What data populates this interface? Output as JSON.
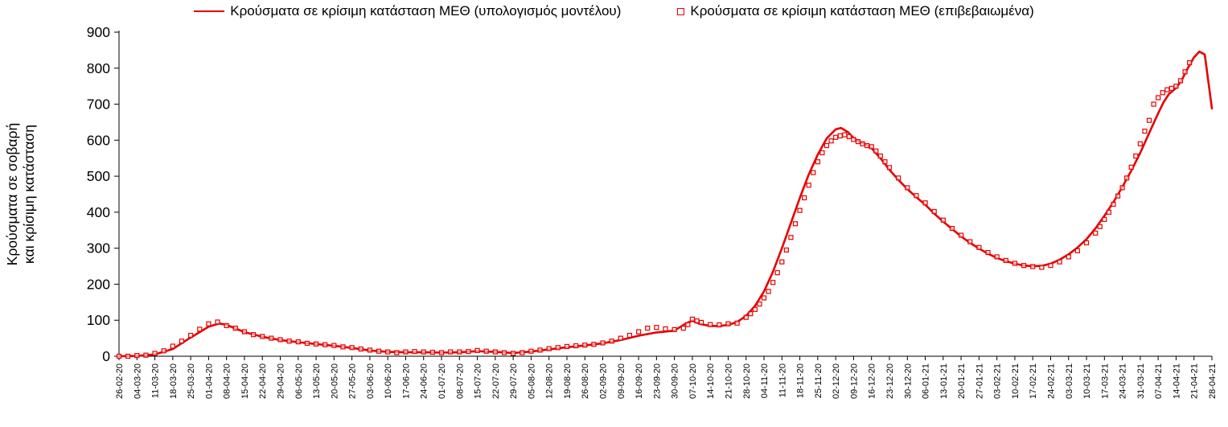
{
  "chart_data": {
    "type": "line",
    "title": "",
    "xlabel": "",
    "ylabel": "Κρούσματα σε σοβαρή και κρίσιμη κατάσταση",
    "ylabel_lines": [
      "Κρούσματα σε σοβαρή",
      "και κρίσιμη κατάσταση"
    ],
    "ylim": [
      0,
      900
    ],
    "yticks": [
      0,
      100,
      200,
      300,
      400,
      500,
      600,
      700,
      800,
      900
    ],
    "grid": false,
    "legend_position": "top-center",
    "colors": {
      "series_red": "#e60000",
      "axis": "#000000",
      "background": "#ffffff"
    },
    "x_tick_labels": [
      "26-02-20",
      "04-03-20",
      "11-03-20",
      "18-03-20",
      "25-03-20",
      "01-04-20",
      "08-04-20",
      "15-04-20",
      "22-04-20",
      "29-04-20",
      "06-05-20",
      "13-05-20",
      "20-05-20",
      "27-05-20",
      "03-06-20",
      "10-06-20",
      "17-06-20",
      "24-06-20",
      "01-07-20",
      "08-07-20",
      "15-07-20",
      "22-07-20",
      "29-07-20",
      "05-08-20",
      "12-08-20",
      "19-08-20",
      "26-08-20",
      "02-09-20",
      "09-09-20",
      "16-09-20",
      "23-09-20",
      "30-09-20",
      "07-10-20",
      "14-10-20",
      "21-10-20",
      "28-10-20",
      "04-11-20",
      "11-11-20",
      "18-11-20",
      "25-11-20",
      "02-12-20",
      "09-12-20",
      "16-12-20",
      "23-12-20",
      "30-12-20",
      "06-01-21",
      "13-01-21",
      "20-01-21",
      "27-01-21",
      "03-02-21",
      "10-02-21",
      "17-02-21",
      "24-02-21",
      "03-03-21",
      "10-03-21",
      "17-03-21",
      "24-03-21",
      "31-03-21",
      "07-04-21",
      "14-04-21",
      "21-04-21",
      "28-04-21"
    ],
    "series": [
      {
        "name": "Κρούσματα σε κρίσιμη κατάσταση ΜΕΘ (υπολογισμός μοντέλου)",
        "style": "line",
        "color": "#e60000",
        "points": [
          [
            0,
            0
          ],
          [
            1,
            1
          ],
          [
            2,
            5
          ],
          [
            3,
            20
          ],
          [
            4,
            52
          ],
          [
            5,
            82
          ],
          [
            5.6,
            91
          ],
          [
            6,
            87
          ],
          [
            6.5,
            77
          ],
          [
            7,
            67
          ],
          [
            8,
            54
          ],
          [
            9,
            45
          ],
          [
            10,
            39
          ],
          [
            11,
            34
          ],
          [
            12,
            29
          ],
          [
            13,
            23
          ],
          [
            14,
            16
          ],
          [
            15,
            12
          ],
          [
            16,
            11
          ],
          [
            17,
            11
          ],
          [
            18,
            10
          ],
          [
            19,
            11
          ],
          [
            20,
            14
          ],
          [
            21,
            12
          ],
          [
            22,
            9
          ],
          [
            23,
            13
          ],
          [
            24,
            19
          ],
          [
            25,
            25
          ],
          [
            26,
            30
          ],
          [
            27,
            36
          ],
          [
            28,
            45
          ],
          [
            29,
            57
          ],
          [
            30,
            66
          ],
          [
            31,
            71
          ],
          [
            31.6,
            90
          ],
          [
            32,
            99
          ],
          [
            32.4,
            90
          ],
          [
            33,
            84
          ],
          [
            33.5,
            84
          ],
          [
            34,
            87
          ],
          [
            34.5,
            95
          ],
          [
            35,
            112
          ],
          [
            35.5,
            140
          ],
          [
            36,
            180
          ],
          [
            36.5,
            235
          ],
          [
            37,
            300
          ],
          [
            37.5,
            370
          ],
          [
            38,
            440
          ],
          [
            38.5,
            505
          ],
          [
            39,
            560
          ],
          [
            39.5,
            605
          ],
          [
            40,
            630
          ],
          [
            40.3,
            634
          ],
          [
            40.7,
            622
          ],
          [
            41,
            606
          ],
          [
            41.3,
            596
          ],
          [
            41.7,
            588
          ],
          [
            42,
            578
          ],
          [
            42.5,
            550
          ],
          [
            43,
            518
          ],
          [
            43.5,
            490
          ],
          [
            44,
            464
          ],
          [
            44.5,
            442
          ],
          [
            45,
            421
          ],
          [
            45.5,
            396
          ],
          [
            46,
            374
          ],
          [
            46.5,
            353
          ],
          [
            47,
            333
          ],
          [
            47.5,
            315
          ],
          [
            48,
            299
          ],
          [
            48.5,
            285
          ],
          [
            49,
            273
          ],
          [
            49.5,
            264
          ],
          [
            50,
            257
          ],
          [
            50.5,
            252
          ],
          [
            51,
            250
          ],
          [
            51.5,
            251
          ],
          [
            52,
            257
          ],
          [
            52.5,
            268
          ],
          [
            53,
            283
          ],
          [
            53.5,
            302
          ],
          [
            54,
            325
          ],
          [
            54.5,
            355
          ],
          [
            55,
            390
          ],
          [
            55.5,
            428
          ],
          [
            56,
            470
          ],
          [
            56.5,
            515
          ],
          [
            57,
            565
          ],
          [
            57.5,
            620
          ],
          [
            58,
            675
          ],
          [
            58.3,
            705
          ],
          [
            58.6,
            728
          ],
          [
            59,
            745
          ],
          [
            59.3,
            765
          ],
          [
            59.6,
            795
          ],
          [
            60,
            830
          ],
          [
            60.3,
            846
          ],
          [
            60.6,
            838
          ],
          [
            61,
            688
          ]
        ]
      },
      {
        "name": "Κρούσματα σε κρίσιμη κατάσταση ΜΕΘ (επιβεβαιωμένα)",
        "style": "scatter-square",
        "color": "#e60000",
        "points": [
          [
            0,
            0
          ],
          [
            0.5,
            0
          ],
          [
            1,
            2
          ],
          [
            1.5,
            3
          ],
          [
            2,
            8
          ],
          [
            2.5,
            15
          ],
          [
            3,
            28
          ],
          [
            3.5,
            42
          ],
          [
            4,
            58
          ],
          [
            4.5,
            75
          ],
          [
            5,
            90
          ],
          [
            5.5,
            95
          ],
          [
            6,
            85
          ],
          [
            6.5,
            78
          ],
          [
            7,
            68
          ],
          [
            7.5,
            60
          ],
          [
            8,
            55
          ],
          [
            8.5,
            50
          ],
          [
            9,
            46
          ],
          [
            9.5,
            42
          ],
          [
            10,
            40
          ],
          [
            10.5,
            36
          ],
          [
            11,
            34
          ],
          [
            11.5,
            32
          ],
          [
            12,
            30
          ],
          [
            12.5,
            26
          ],
          [
            13,
            24
          ],
          [
            13.5,
            20
          ],
          [
            14,
            17
          ],
          [
            14.5,
            14
          ],
          [
            15,
            12
          ],
          [
            15.5,
            10
          ],
          [
            16,
            12
          ],
          [
            16.5,
            13
          ],
          [
            17,
            12
          ],
          [
            17.5,
            11
          ],
          [
            18,
            10
          ],
          [
            18.5,
            12
          ],
          [
            19,
            12
          ],
          [
            19.5,
            13
          ],
          [
            20,
            16
          ],
          [
            20.5,
            14
          ],
          [
            21,
            12
          ],
          [
            21.5,
            10
          ],
          [
            22,
            8
          ],
          [
            22.5,
            10
          ],
          [
            23,
            14
          ],
          [
            23.5,
            17
          ],
          [
            24,
            21
          ],
          [
            24.5,
            24
          ],
          [
            25,
            27
          ],
          [
            25.5,
            29
          ],
          [
            26,
            31
          ],
          [
            26.5,
            33
          ],
          [
            27,
            37
          ],
          [
            27.5,
            42
          ],
          [
            28,
            50
          ],
          [
            28.5,
            58
          ],
          [
            29,
            68
          ],
          [
            29.5,
            78
          ],
          [
            30,
            80
          ],
          [
            30.5,
            76
          ],
          [
            31,
            74
          ],
          [
            31.5,
            78
          ],
          [
            31.75,
            88
          ],
          [
            32,
            103
          ],
          [
            32.25,
            98
          ],
          [
            32.5,
            94
          ],
          [
            33,
            88
          ],
          [
            33.5,
            87
          ],
          [
            34,
            90
          ],
          [
            34.5,
            92
          ],
          [
            35,
            108
          ],
          [
            35.25,
            118
          ],
          [
            35.5,
            130
          ],
          [
            35.75,
            145
          ],
          [
            36,
            162
          ],
          [
            36.25,
            180
          ],
          [
            36.5,
            205
          ],
          [
            36.75,
            232
          ],
          [
            37,
            262
          ],
          [
            37.25,
            295
          ],
          [
            37.5,
            330
          ],
          [
            37.75,
            368
          ],
          [
            38,
            405
          ],
          [
            38.25,
            440
          ],
          [
            38.5,
            475
          ],
          [
            38.75,
            510
          ],
          [
            39,
            540
          ],
          [
            39.25,
            565
          ],
          [
            39.5,
            585
          ],
          [
            39.75,
            598
          ],
          [
            40,
            608
          ],
          [
            40.25,
            612
          ],
          [
            40.5,
            615
          ],
          [
            40.75,
            610
          ],
          [
            41,
            602
          ],
          [
            41.25,
            596
          ],
          [
            41.5,
            590
          ],
          [
            41.75,
            585
          ],
          [
            42,
            582
          ],
          [
            42.25,
            570
          ],
          [
            42.5,
            556
          ],
          [
            42.75,
            540
          ],
          [
            43,
            524
          ],
          [
            43.5,
            495
          ],
          [
            44,
            468
          ],
          [
            44.5,
            446
          ],
          [
            45,
            426
          ],
          [
            45.5,
            402
          ],
          [
            46,
            378
          ],
          [
            46.5,
            355
          ],
          [
            47,
            336
          ],
          [
            47.5,
            318
          ],
          [
            48,
            302
          ],
          [
            48.5,
            288
          ],
          [
            49,
            276
          ],
          [
            49.5,
            266
          ],
          [
            50,
            258
          ],
          [
            50.5,
            252
          ],
          [
            51,
            249
          ],
          [
            51.5,
            247
          ],
          [
            52,
            252
          ],
          [
            52.5,
            262
          ],
          [
            53,
            276
          ],
          [
            53.5,
            293
          ],
          [
            54,
            315
          ],
          [
            54.5,
            342
          ],
          [
            54.75,
            360
          ],
          [
            55,
            380
          ],
          [
            55.25,
            400
          ],
          [
            55.5,
            422
          ],
          [
            55.75,
            445
          ],
          [
            56,
            468
          ],
          [
            56.25,
            495
          ],
          [
            56.5,
            525
          ],
          [
            56.75,
            556
          ],
          [
            57,
            590
          ],
          [
            57.25,
            625
          ],
          [
            57.5,
            655
          ],
          [
            57.75,
            700
          ],
          [
            58,
            718
          ],
          [
            58.25,
            732
          ],
          [
            58.5,
            740
          ],
          [
            58.75,
            744
          ],
          [
            59,
            750
          ],
          [
            59.25,
            765
          ],
          [
            59.5,
            790
          ],
          [
            59.75,
            815
          ]
        ]
      }
    ]
  }
}
